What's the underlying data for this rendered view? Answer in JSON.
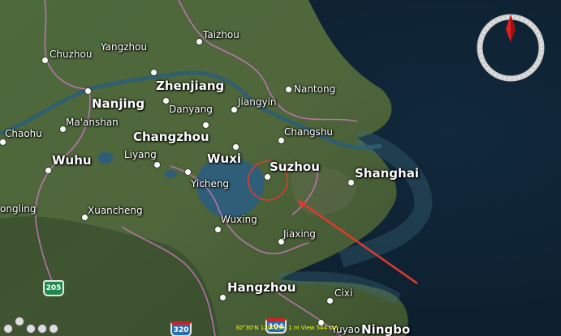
{
  "map": {
    "places": {
      "taizhou": "Taizhou",
      "yangzhou": "Yangzhou",
      "chuzhou": "Chuzhou",
      "zhenjiang": "Zhenjiang",
      "nantong": "Nantong",
      "nanjing": "Nanjing",
      "danyang": "Danyang",
      "jiangyin": "Jiangyin",
      "maanshan": "Ma'anshan",
      "chaohu": "Chaohu",
      "changzhou": "Changzhou",
      "changshu": "Changshu",
      "liyang": "Liyang",
      "wuxi": "Wuxi",
      "wuhu": "Wuhu",
      "suzhou": "Suzhou",
      "shanghai": "Shanghai",
      "yicheng": "Yicheng",
      "ongling": "ongling",
      "xuancheng": "Xuancheng",
      "wuxing": "Wuxing",
      "jiaxing": "Jiaxing",
      "hangzhou": "Hangzhou",
      "cixi": "Cixi",
      "yuyao": "Yuyao",
      "ningbo": "Ningbo"
    },
    "shields": {
      "s205": "205",
      "s320": "320",
      "s104": "104"
    },
    "status_text": "30°30'N 120°03'E   1 m   View 544 km"
  },
  "colors": {
    "land": "#3f5a32",
    "sea": "#0f2436",
    "lake": "#2f5f78",
    "boundary": "#c277b8",
    "highlight": "#e03a2f"
  },
  "icons": {
    "compass": "compass-icon",
    "nav": "navigation-controls"
  }
}
